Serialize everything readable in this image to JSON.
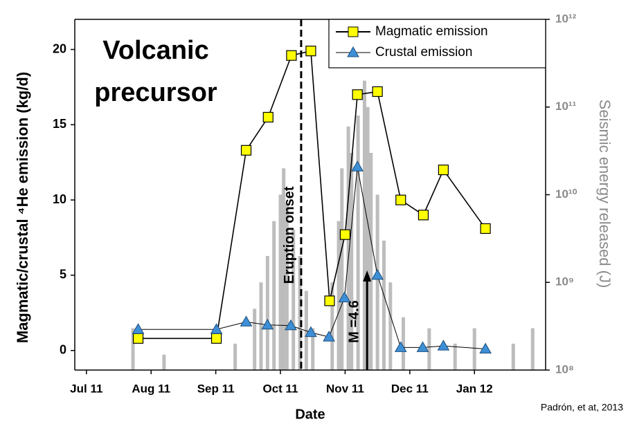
{
  "chart_data": {
    "type": "line",
    "annotation_lines": [
      "Volcanic",
      "precursor"
    ],
    "xlabel": "Date",
    "ylabel": "Magmatic/crustal ⁴He emission (kg/d)",
    "y2label": "Seismic energy released (J)",
    "credit": "Padrón, et at, 2013",
    "xlim": [
      -0.18,
      7.1
    ],
    "xticks": [
      {
        "value": 0,
        "label": "Jul 11"
      },
      {
        "value": 1,
        "label": "Aug 11"
      },
      {
        "value": 2,
        "label": "Sep 11"
      },
      {
        "value": 3,
        "label": "Oct 11"
      },
      {
        "value": 4,
        "label": "Nov 11"
      },
      {
        "value": 5,
        "label": "Dec 11"
      },
      {
        "value": 6,
        "label": "Jan 12"
      }
    ],
    "ylim": [
      -1.3,
      22
    ],
    "yticks": [
      0,
      5,
      10,
      15,
      20
    ],
    "y2lim": [
      100000000,
      1000000000000
    ],
    "y2scale": "log",
    "y2ticks": [
      {
        "value": 100000000,
        "label": "10⁸"
      },
      {
        "value": 1000000000,
        "label": "10⁹"
      },
      {
        "value": 10000000000,
        "label": "10¹⁰"
      },
      {
        "value": 100000000000,
        "label": "10¹¹"
      },
      {
        "value": 1000000000000,
        "label": "10¹²"
      }
    ],
    "legend": "upper right",
    "series": [
      {
        "name": "Magmatic emission",
        "color": "#ffff00",
        "marker": "square",
        "x": [
          0.8,
          2.01,
          2.47,
          2.81,
          3.17,
          3.47,
          3.76,
          4.0,
          4.19,
          4.5,
          4.86,
          5.21,
          5.52,
          6.17
        ],
        "values": [
          0.8,
          0.8,
          13.3,
          15.5,
          19.6,
          19.9,
          3.3,
          7.7,
          17.0,
          17.2,
          10.0,
          9.0,
          12.0,
          8.1
        ]
      },
      {
        "name": "Crustal emission",
        "color": "#3d8fd6",
        "marker": "triangle",
        "x": [
          0.8,
          2.01,
          2.47,
          2.8,
          3.16,
          3.47,
          3.75,
          3.99,
          4.19,
          4.5,
          4.86,
          5.2,
          5.52,
          6.17
        ],
        "values": [
          1.4,
          1.4,
          1.9,
          1.7,
          1.65,
          1.2,
          0.9,
          3.5,
          12.2,
          5.0,
          0.2,
          0.2,
          0.3,
          0.1
        ]
      }
    ],
    "bars": {
      "axis": "y2",
      "color": "#bdbdbd",
      "x": [
        0.72,
        1.2,
        2.3,
        2.6,
        2.7,
        2.8,
        2.9,
        3.0,
        3.05,
        3.1,
        3.2,
        3.3,
        3.4,
        3.5,
        3.8,
        3.9,
        3.95,
        4.05,
        4.1,
        4.2,
        4.3,
        4.35,
        4.4,
        4.5,
        4.6,
        4.7,
        4.9,
        5.3,
        5.7,
        6.0,
        6.6,
        6.9
      ],
      "values": [
        300000000,
        150000000,
        200000000,
        500000000,
        1000000000,
        2000000000,
        5000000000,
        10000000000,
        20000000000,
        8000000000,
        4000000000,
        2000000000,
        800000000,
        300000000,
        1000000000,
        5000000000,
        20000000000,
        60000000000,
        30000000000,
        80000000000,
        200000000000,
        100000000000,
        30000000000,
        10000000000,
        3000000000,
        1000000000,
        400000000,
        300000000,
        200000000,
        300000000,
        200000000,
        300000000
      ]
    },
    "eruption": {
      "text": "Eruption onset",
      "x": 3.32
    },
    "quake": {
      "text": "M =4.6",
      "x": 4.34
    }
  }
}
